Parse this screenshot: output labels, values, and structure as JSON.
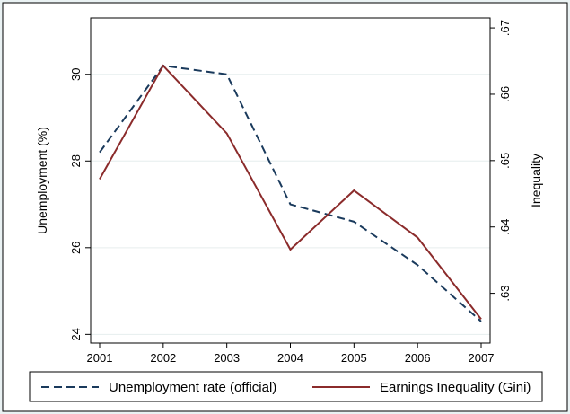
{
  "chart_data": {
    "type": "line",
    "title": "",
    "x": [
      2001,
      2002,
      2003,
      2004,
      2005,
      2006,
      2007
    ],
    "xlabel": "",
    "ylabel": "Unemployment (%)",
    "ylim": [
      23.8,
      31.3
    ],
    "yticks": [
      "24",
      "26",
      "28",
      "30"
    ],
    "y2label": "Inequality",
    "y2lim": [
      0.6225,
      0.6715
    ],
    "y2ticks": [
      ".63",
      ".64",
      ".65",
      ".66",
      ".67"
    ],
    "grid": true,
    "legend": "bottom",
    "series": [
      {
        "name": "Unemployment rate (official)",
        "axis": "left",
        "style": "dashed",
        "color": "#1a3a5c",
        "values": [
          28.2,
          30.2,
          30.0,
          27.0,
          26.6,
          25.6,
          24.3
        ]
      },
      {
        "name": "Earnings Inequality (Gini)",
        "axis": "right",
        "style": "solid",
        "color": "#8b2b2b",
        "values": [
          0.6472,
          0.6643,
          0.6541,
          0.6366,
          0.6455,
          0.6384,
          0.6261
        ]
      }
    ]
  }
}
